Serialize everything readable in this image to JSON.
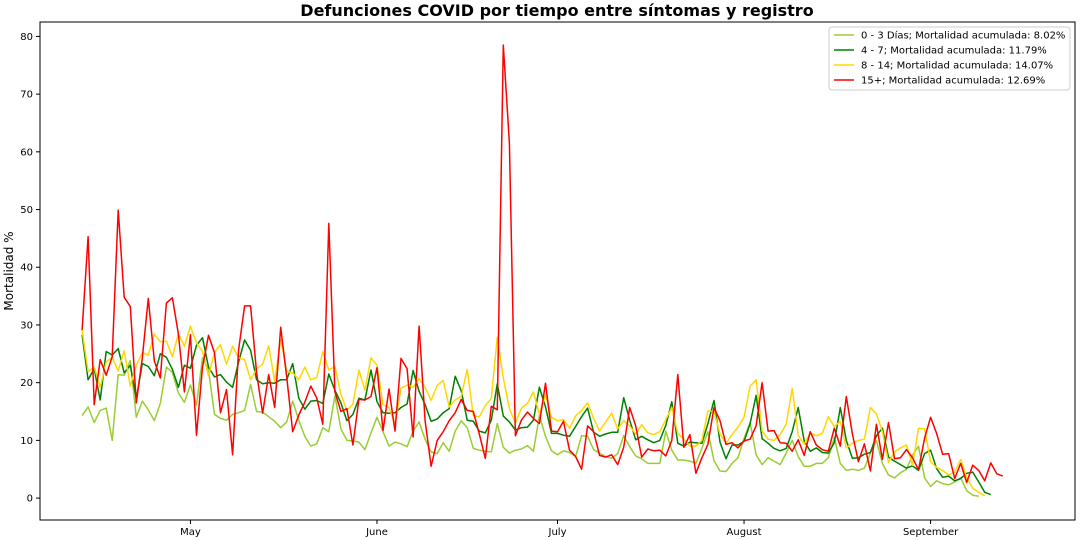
{
  "chart_data": {
    "type": "line",
    "title": "Defunciones COVID por tiempo entre síntomas y registro",
    "xlabel": "",
    "ylabel": "Mortalidad %",
    "x_start": "2020-04-13",
    "x_ticks": [
      {
        "label": "May",
        "date": "2020-05-01"
      },
      {
        "label": "June",
        "date": "2020-06-01"
      },
      {
        "label": "July",
        "date": "2020-07-01"
      },
      {
        "label": "August",
        "date": "2020-08-01"
      },
      {
        "label": "September",
        "date": "2020-09-01"
      }
    ],
    "y_ticks": [
      0,
      10,
      20,
      30,
      40,
      50,
      60,
      70,
      80
    ],
    "ylim": [
      -3.8,
      82.5
    ],
    "xlim": [
      "2020-04-06",
      "2020-09-25"
    ],
    "grid": false,
    "legend_position": "top-right",
    "series": [
      {
        "name": "0 - 3 Días; Mortalidad acumulada: 8.02%",
        "color": "#9acd32",
        "values": [
          14.3,
          15.8,
          13.1,
          15.2,
          15.6,
          10.0,
          21.4,
          21.3,
          23.8,
          14.0,
          16.8,
          15.3,
          13.4,
          16.4,
          22.7,
          21.8,
          18.2,
          16.6,
          19.6,
          16.1,
          24.3,
          22.2,
          14.5,
          13.8,
          13.5,
          14.5,
          14.8,
          15.2,
          19.7,
          15.0,
          14.9,
          14.1,
          13.3,
          12.2,
          13.2,
          16.8,
          13.5,
          10.7,
          9.0,
          9.4,
          12.2,
          11.5,
          17.7,
          12.0,
          10.0,
          9.9,
          9.7,
          8.4,
          11.3,
          14.0,
          11.5,
          9.0,
          9.7,
          9.4,
          8.9,
          11.6,
          13.2,
          10.2,
          8.0,
          7.7,
          9.6,
          8.1,
          11.6,
          13.4,
          12.2,
          8.6,
          8.3,
          8.1,
          8.0,
          12.9,
          8.8,
          7.8,
          8.3,
          8.5,
          9.1,
          8.1,
          14.3,
          10.7,
          8.2,
          7.5,
          8.2,
          7.9,
          7.2,
          10.8,
          10.7,
          8.4,
          7.8,
          7.2,
          6.9,
          7.7,
          10.8,
          8.9,
          7.3,
          6.8,
          6.0,
          6.0,
          6.0,
          11.6,
          8.3,
          6.6,
          6.6,
          6.4,
          6.0,
          8.6,
          11.5,
          6.5,
          4.7,
          4.6,
          6.0,
          7.0,
          10.3,
          13.1,
          7.5,
          5.8,
          7.0,
          6.4,
          5.8,
          7.8,
          10.0,
          7.2,
          5.5,
          5.5,
          6.0,
          6.0,
          7.0,
          10.5,
          6.0,
          4.8,
          5.0,
          4.8,
          5.2,
          7.8,
          10.0,
          6.0,
          4.0,
          3.5,
          4.4,
          5.0,
          7.4,
          9.0,
          3.5,
          2.0,
          3.0,
          2.5,
          2.3,
          2.8,
          3.5,
          1.3,
          0.5,
          0.3
        ]
      },
      {
        "name": "4 - 7; Mortalidad acumulada: 11.79%",
        "color": "#008000",
        "values": [
          28.3,
          20.5,
          22.4,
          17.0,
          25.4,
          24.8,
          25.9,
          21.7,
          23.0,
          17.2,
          23.3,
          22.8,
          21.2,
          25.0,
          24.4,
          22.3,
          19.2,
          23.0,
          22.5,
          26.5,
          27.8,
          22.7,
          21.0,
          21.4,
          20.1,
          19.2,
          23.6,
          27.4,
          25.6,
          20.5,
          19.8,
          20.0,
          19.9,
          20.5,
          20.5,
          23.3,
          17.3,
          15.4,
          16.8,
          16.9,
          16.4,
          21.5,
          18.7,
          16.5,
          13.4,
          14.5,
          17.3,
          17.0,
          22.2,
          16.7,
          14.8,
          14.7,
          14.8,
          15.7,
          16.3,
          22.1,
          18.5,
          16.2,
          13.3,
          13.7,
          14.8,
          15.5,
          21.1,
          18.6,
          13.5,
          13.3,
          11.6,
          11.3,
          13.5,
          19.8,
          14.2,
          13.2,
          11.8,
          12.2,
          12.3,
          13.5,
          19.2,
          15.8,
          11.2,
          11.2,
          10.9,
          10.7,
          12.4,
          14.1,
          15.6,
          11.4,
          10.7,
          11.1,
          11.4,
          11.4,
          17.4,
          13.5,
          10.1,
          10.7,
          10.1,
          9.6,
          10.0,
          12.6,
          16.7,
          9.5,
          9.0,
          9.7,
          9.6,
          9.5,
          12.9,
          16.9,
          9.7,
          6.8,
          9.2,
          9.2,
          9.8,
          12.9,
          17.8,
          10.3,
          9.5,
          8.6,
          8.2,
          8.6,
          11.5,
          15.7,
          9.9,
          8.1,
          8.7,
          7.9,
          7.8,
          9.6,
          15.7,
          10.0,
          6.9,
          7.0,
          7.6,
          7.9,
          10.8,
          12.1,
          7.1,
          6.4,
          5.8,
          5.2,
          5.6,
          4.8,
          7.7,
          8.3,
          5.1,
          3.6,
          3.8,
          3.0,
          3.4,
          4.3,
          4.5,
          2.8,
          1.0,
          0.6
        ]
      },
      {
        "name": "8 - 14; Mortalidad acumulada: 14.07%",
        "color": "#ffd700",
        "values": [
          29.1,
          21.9,
          22.7,
          19.2,
          23.6,
          24.4,
          22.0,
          25.5,
          19.4,
          23.0,
          25.2,
          24.8,
          28.4,
          27.1,
          27.2,
          24.5,
          28.5,
          26.3,
          29.8,
          26.9,
          25.4,
          21.2,
          25.3,
          26.6,
          23.2,
          26.3,
          24.3,
          24.0,
          20.5,
          22.4,
          23.2,
          26.4,
          20.2,
          27.5,
          22.0,
          21.7,
          20.5,
          22.7,
          20.5,
          20.9,
          25.4,
          22.2,
          22.8,
          18.0,
          15.2,
          16.3,
          22.2,
          18.7,
          24.3,
          23.0,
          16.2,
          15.7,
          12.8,
          19.0,
          19.6,
          19.2,
          20.7,
          19.2,
          16.9,
          19.5,
          20.4,
          15.8,
          17.0,
          17.6,
          22.3,
          14.3,
          14.1,
          16.0,
          17.3,
          27.9,
          20.8,
          15.5,
          13.0,
          15.6,
          16.4,
          18.4,
          14.5,
          17.9,
          14.0,
          13.4,
          13.6,
          12.1,
          14.2,
          15.2,
          16.5,
          13.8,
          11.6,
          13.2,
          14.7,
          12.0,
          13.4,
          12.5,
          11.1,
          12.7,
          11.3,
          11.0,
          11.5,
          13.6,
          15.7,
          11.2,
          10.2,
          9.0,
          9.0,
          10.0,
          15.1,
          15.0,
          11.1,
          9.5,
          11.0,
          12.3,
          14.0,
          19.4,
          20.5,
          11.6,
          10.2,
          10.0,
          11.0,
          12.8,
          19.0,
          10.9,
          9.3,
          11.3,
          10.8,
          11.2,
          14.1,
          12.4,
          13.3,
          8.7,
          9.5,
          10.0,
          10.2,
          15.7,
          14.6,
          11.5,
          6.2,
          8.0,
          8.7,
          9.2,
          5.7,
          12.1,
          12.0,
          6.3,
          5.3,
          4.8,
          4.0,
          4.5,
          6.7,
          3.5,
          1.7,
          1.0,
          0.4
        ]
      },
      {
        "name": "15+; Mortalidad acumulada: 12.69%",
        "color": "#ff0000",
        "values": [
          29.1,
          45.3,
          16.2,
          24.0,
          21.3,
          24.5,
          49.9,
          34.8,
          33.2,
          16.5,
          24.3,
          34.6,
          23.8,
          20.8,
          33.8,
          34.7,
          28.4,
          18.4,
          28.3,
          10.9,
          22.7,
          28.2,
          25.2,
          14.8,
          18.8,
          7.5,
          25.7,
          33.3,
          33.3,
          21.7,
          14.7,
          21.4,
          15.7,
          29.6,
          21.0,
          11.5,
          14.4,
          16.6,
          19.4,
          17.3,
          12.8,
          47.6,
          18.4,
          15.0,
          15.5,
          9.2,
          17.1,
          17.0,
          17.6,
          22.6,
          11.7,
          18.9,
          11.6,
          24.2,
          22.4,
          10.6,
          29.8,
          13.4,
          5.5,
          10.0,
          11.5,
          13.4,
          14.8,
          17.1,
          15.2,
          15.0,
          11.1,
          6.9,
          15.9,
          15.3,
          78.5,
          61.5,
          10.8,
          13.5,
          14.9,
          13.8,
          12.9,
          19.9,
          11.6,
          11.5,
          13.3,
          8.3,
          7.2,
          5.0,
          12.5,
          11.5,
          7.4,
          7.1,
          7.5,
          5.8,
          8.8,
          15.7,
          12.5,
          7.1,
          8.5,
          8.2,
          8.3,
          7.3,
          10.0,
          21.4,
          8.8,
          11.0,
          4.3,
          7.0,
          9.3,
          15.7,
          13.4,
          9.3,
          9.6,
          8.7,
          9.9,
          10.2,
          12.5,
          20.0,
          11.6,
          11.7,
          9.6,
          9.5,
          8.1,
          10.1,
          7.4,
          11.5,
          9.2,
          8.4,
          8.1,
          12.1,
          9.0,
          17.6,
          11.1,
          6.3,
          9.4,
          4.7,
          12.8,
          6.7,
          13.1,
          6.8,
          7.0,
          8.4,
          7.0,
          4.9,
          10.4,
          14.0,
          11.2,
          7.6,
          7.7,
          3.4,
          6.0,
          2.7,
          5.7,
          4.8,
          3.0,
          6.1,
          4.2,
          3.8
        ]
      }
    ]
  }
}
